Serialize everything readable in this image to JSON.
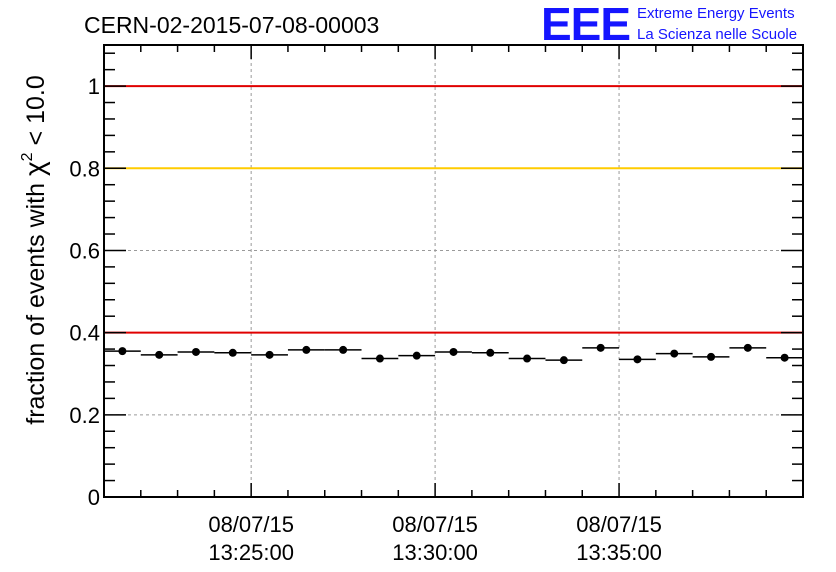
{
  "chart_data": {
    "type": "scatter",
    "title": "CERN-02-2015-07-08-00003",
    "logo": {
      "mark": "EEE",
      "line1": "Extreme Energy Events",
      "line2": "La Scienza nelle Scuole"
    },
    "ylabel": {
      "prefix": "fraction of events with ",
      "symbol": "χ",
      "superscript": "2",
      "suffix": " < 10.0"
    },
    "xlabel": "",
    "ylim": [
      0,
      1.1
    ],
    "xlim": [
      "2015-07-08 13:21:00",
      "2015-07-08 13:40:00"
    ],
    "y_ticks": [
      {
        "value": 0,
        "label": "0"
      },
      {
        "value": 0.2,
        "label": "0.2"
      },
      {
        "value": 0.4,
        "label": "0.4"
      },
      {
        "value": 0.6,
        "label": "0.6"
      },
      {
        "value": 0.8,
        "label": "0.8"
      },
      {
        "value": 1.0,
        "label": "1"
      }
    ],
    "x_ticks": [
      {
        "time": "2015-07-08 13:25:00",
        "date_label": "08/07/15",
        "time_label": "13:25:00"
      },
      {
        "time": "2015-07-08 13:30:00",
        "date_label": "08/07/15",
        "time_label": "13:30:00"
      },
      {
        "time": "2015-07-08 13:35:00",
        "date_label": "08/07/15",
        "time_label": "13:35:00"
      }
    ],
    "grid": true,
    "reference_lines": [
      {
        "y": 1.0,
        "color": "#e00000"
      },
      {
        "y": 0.8,
        "color": "#ffcc00"
      },
      {
        "y": 0.4,
        "color": "#e00000"
      }
    ],
    "series": [
      {
        "bin_width_seconds": 60,
        "points": [
          {
            "start": "2015-07-08 13:21:00",
            "y": 0.355
          },
          {
            "start": "2015-07-08 13:22:00",
            "y": 0.346
          },
          {
            "start": "2015-07-08 13:23:00",
            "y": 0.353
          },
          {
            "start": "2015-07-08 13:24:00",
            "y": 0.351
          },
          {
            "start": "2015-07-08 13:25:00",
            "y": 0.346
          },
          {
            "start": "2015-07-08 13:26:00",
            "y": 0.358
          },
          {
            "start": "2015-07-08 13:27:00",
            "y": 0.358
          },
          {
            "start": "2015-07-08 13:28:00",
            "y": 0.337
          },
          {
            "start": "2015-07-08 13:29:00",
            "y": 0.344
          },
          {
            "start": "2015-07-08 13:30:00",
            "y": 0.353
          },
          {
            "start": "2015-07-08 13:31:00",
            "y": 0.351
          },
          {
            "start": "2015-07-08 13:32:00",
            "y": 0.337
          },
          {
            "start": "2015-07-08 13:33:00",
            "y": 0.333
          },
          {
            "start": "2015-07-08 13:34:00",
            "y": 0.363
          },
          {
            "start": "2015-07-08 13:35:00",
            "y": 0.335
          },
          {
            "start": "2015-07-08 13:36:00",
            "y": 0.349
          },
          {
            "start": "2015-07-08 13:37:00",
            "y": 0.341
          },
          {
            "start": "2015-07-08 13:38:00",
            "y": 0.363
          },
          {
            "start": "2015-07-08 13:39:00",
            "y": 0.339
          }
        ]
      }
    ]
  }
}
